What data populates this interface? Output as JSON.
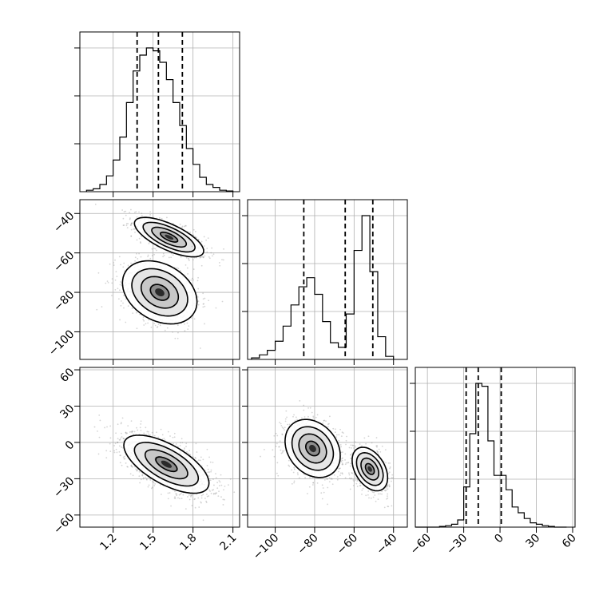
{
  "chart_data": {
    "type": "corner",
    "parameters": [
      {
        "index": 0,
        "range": [
          0.95,
          2.15
        ],
        "ticks": [
          1.2,
          1.5,
          1.8,
          2.1
        ],
        "tick_labels": [
          "1.2",
          "1.5",
          "1.8",
          "2.1"
        ]
      },
      {
        "index": 1,
        "range": [
          -114,
          -33
        ],
        "ticks": [
          -100,
          -80,
          -60,
          -40
        ],
        "tick_labels": [
          "−100",
          "−80",
          "−60",
          "−40"
        ]
      },
      {
        "index": 2,
        "range": [
          -70,
          62
        ],
        "ticks": [
          -60,
          -30,
          0,
          30,
          60
        ],
        "tick_labels": [
          "−60",
          "−30",
          "0",
          "30",
          "60"
        ]
      }
    ],
    "histograms": [
      {
        "param": 0,
        "edges": [
          1.0,
          1.05,
          1.1,
          1.15,
          1.2,
          1.25,
          1.3,
          1.35,
          1.4,
          1.45,
          1.5,
          1.55,
          1.6,
          1.65,
          1.7,
          1.75,
          1.8,
          1.85,
          1.9,
          1.95,
          2.0,
          2.05,
          2.1
        ],
        "counts": [
          0.01,
          0.02,
          0.05,
          0.11,
          0.22,
          0.38,
          0.62,
          0.84,
          0.95,
          1.0,
          0.98,
          0.9,
          0.78,
          0.62,
          0.46,
          0.3,
          0.19,
          0.1,
          0.05,
          0.03,
          0.01,
          0.005
        ],
        "quantiles": [
          1.38,
          1.54,
          1.72
        ]
      },
      {
        "param": 1,
        "edges": [
          -112,
          -108,
          -104,
          -100,
          -96,
          -92,
          -88,
          -84,
          -80,
          -76,
          -72,
          -68,
          -64,
          -60,
          -56,
          -52,
          -48,
          -44,
          -40
        ],
        "counts": [
          0.01,
          0.03,
          0.06,
          0.12,
          0.22,
          0.36,
          0.48,
          0.54,
          0.43,
          0.25,
          0.11,
          0.08,
          0.3,
          0.72,
          0.95,
          0.58,
          0.15,
          0.02
        ],
        "quantiles": [
          -85.5,
          -64.5,
          -50.5
        ]
      },
      {
        "param": 2,
        "edges": [
          -70,
          -65,
          -60,
          -55,
          -50,
          -45,
          -40,
          -35,
          -30,
          -25,
          -20,
          -15,
          -10,
          -5,
          0,
          5,
          10,
          15,
          20,
          25,
          30,
          35,
          40,
          45,
          50,
          55
        ],
        "counts": [
          0,
          0,
          0,
          0,
          0.005,
          0.01,
          0.02,
          0.05,
          0.28,
          0.65,
          1.0,
          0.98,
          0.6,
          0.36,
          0.36,
          0.26,
          0.14,
          0.1,
          0.06,
          0.03,
          0.02,
          0.01,
          0.005,
          0,
          0
        ],
        "quantiles": [
          -28,
          -18,
          1
        ]
      }
    ],
    "scatter_2d": [
      {
        "x_param": 0,
        "y_param": 1,
        "modes": [
          {
            "center": [
              1.62,
              -52
            ],
            "spread": [
              0.13,
              5
            ],
            "rho": -0.7,
            "weight": 0.5
          },
          {
            "center": [
              1.55,
              -80
            ],
            "spread": [
              0.14,
              8
            ],
            "rho": -0.3,
            "weight": 0.5
          }
        ]
      },
      {
        "x_param": 0,
        "y_param": 2,
        "modes": [
          {
            "center": [
              1.6,
              -18
            ],
            "spread": [
              0.16,
              12
            ],
            "rho": -0.65,
            "weight": 1.0
          }
        ]
      },
      {
        "x_param": 1,
        "y_param": 2,
        "modes": [
          {
            "center": [
              -81,
              -5
            ],
            "spread": [
              7,
              12
            ],
            "rho": -0.25,
            "weight": 0.5
          },
          {
            "center": [
              -52,
              -22
            ],
            "spread": [
              4.5,
              9
            ],
            "rho": -0.4,
            "weight": 0.5
          }
        ]
      }
    ]
  }
}
